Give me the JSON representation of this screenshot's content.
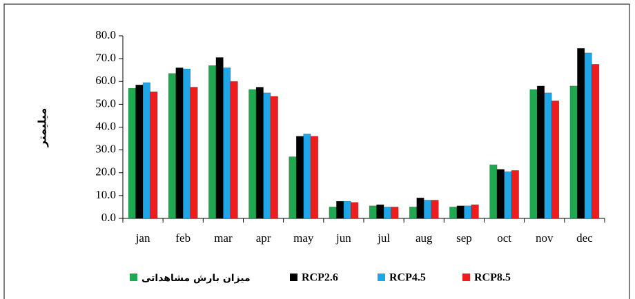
{
  "chart_data": {
    "type": "bar",
    "y_label": "میلیمتر",
    "categories": [
      "jan",
      "feb",
      "mar",
      "apr",
      "may",
      "jun",
      "jul",
      "aug",
      "sep",
      "oct",
      "nov",
      "dec"
    ],
    "series": [
      {
        "name": "میزان بارش مشاهداتی",
        "color": "#1fa84f",
        "values": [
          57,
          63.5,
          67,
          56.5,
          27,
          5,
          5.5,
          5,
          5,
          23.5,
          56.5,
          58
        ]
      },
      {
        "name": "RCP2.6",
        "color": "#000000",
        "values": [
          58.5,
          66,
          70.5,
          57.5,
          36,
          7.5,
          6,
          9,
          5.5,
          21.5,
          58,
          74.5
        ]
      },
      {
        "name": "RCP4.5",
        "color": "#1fa6e8",
        "values": [
          59.5,
          65.5,
          66,
          55,
          37,
          7.5,
          5,
          8,
          5.5,
          20.5,
          55,
          72.5
        ]
      },
      {
        "name": "RCP8.5",
        "color": "#ee1c1c",
        "values": [
          55.5,
          57.5,
          60,
          53.5,
          36,
          7,
          5,
          8,
          6,
          21,
          51.5,
          67.5
        ]
      }
    ],
    "ylim": [
      0,
      80
    ],
    "yticks": [
      {
        "value": 0,
        "label": "0.0"
      },
      {
        "value": 10,
        "label": "10.0"
      },
      {
        "value": 20,
        "label": "20.0"
      },
      {
        "value": 30,
        "label": "30.0"
      },
      {
        "value": 40,
        "label": "40.0"
      },
      {
        "value": 50,
        "label": "50.0"
      },
      {
        "value": 60,
        "label": "60.0"
      },
      {
        "value": 70,
        "label": "70.0"
      },
      {
        "value": 80,
        "label": "80.0"
      }
    ],
    "grid": false,
    "legend": "bottom"
  }
}
